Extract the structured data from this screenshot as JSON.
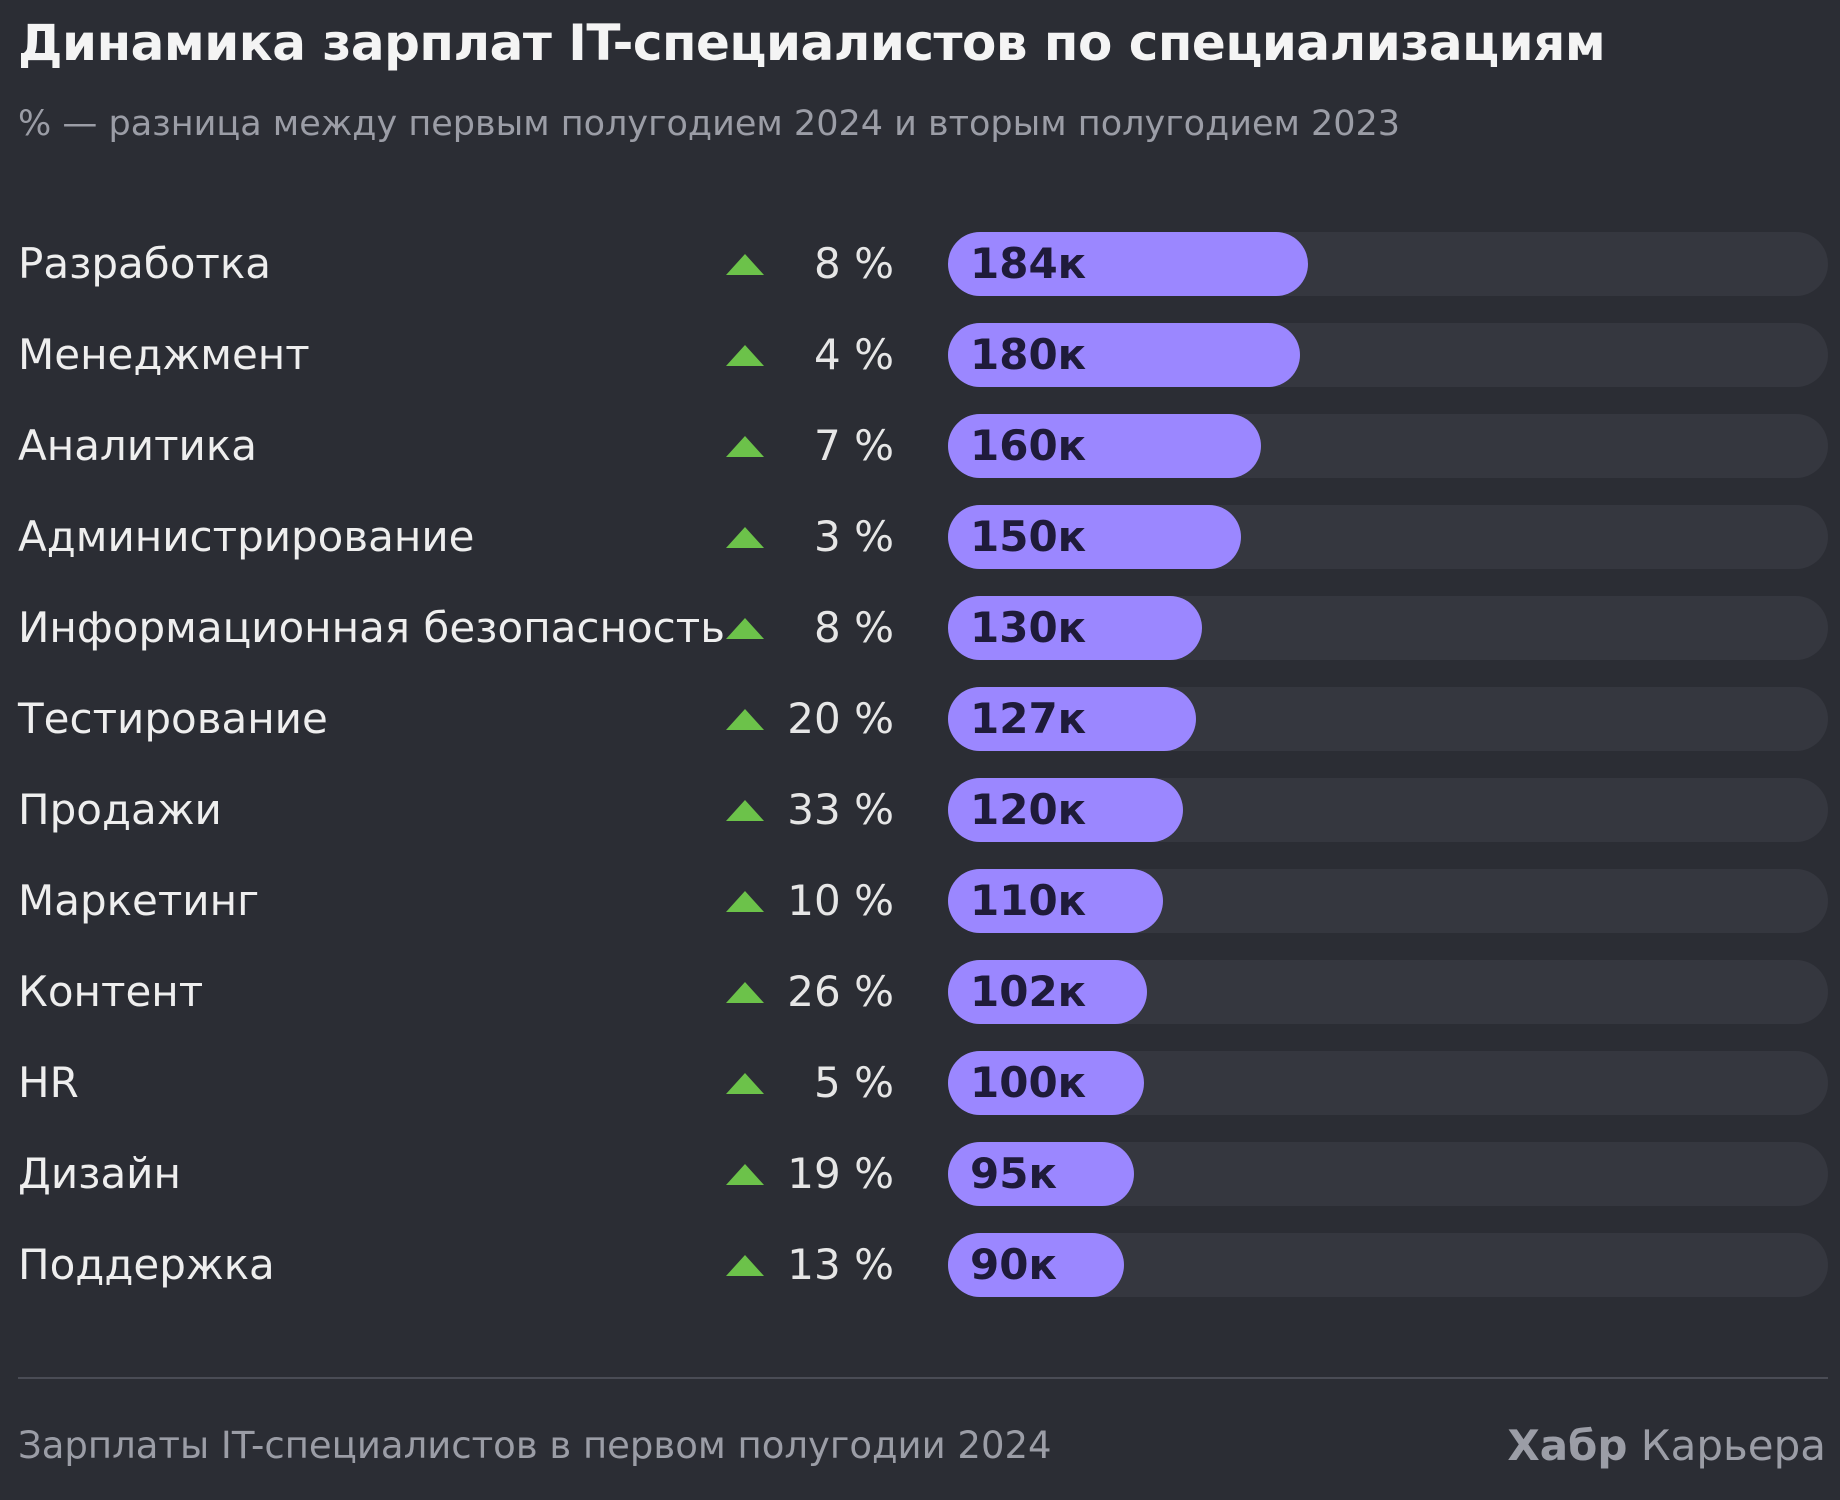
{
  "header": {
    "title": "Динамика зарплат IT-специалистов по специализациям",
    "subtitle": "% — разница между первым полугодием 2024 и вторым полугодием 2023"
  },
  "footer": {
    "note": "Зарплаты IT-специалистов в первом полугодии 2024",
    "brand_bold": "Хабр",
    "brand_regular": " Карьера"
  },
  "colors": {
    "background": "#2b2d34",
    "bar": "#9b87ff",
    "track": "#35373f",
    "trend_up": "#6cc24a"
  },
  "chart_data": {
    "type": "bar",
    "orientation": "horizontal",
    "title": "Динамика зарплат IT-специалистов по специализациям",
    "subtitle": "% — разница между первым полугодием 2024 и вторым полугодием 2023",
    "xlim": [
      0,
      450
    ],
    "categories": [
      "Разработка",
      "Менеджмент",
      "Аналитика",
      "Администрирование",
      "Информационная безопасность",
      "Тестирование",
      "Продажи",
      "Маркетинг",
      "Контент",
      "HR",
      "Дизайн",
      "Поддержка"
    ],
    "series": [
      {
        "values": [
          184,
          180,
          160,
          150,
          130,
          127,
          120,
          110,
          102,
          100,
          95,
          90
        ],
        "labels": [
          "184к",
          "180к",
          "160к",
          "150к",
          "130к",
          "127к",
          "120к",
          "110к",
          "102к",
          "100к",
          "95к",
          "90к"
        ]
      }
    ],
    "change_pct": [
      8,
      4,
      7,
      3,
      8,
      20,
      33,
      10,
      26,
      5,
      19,
      13
    ],
    "change_labels": [
      "8 %",
      "4 %",
      "7 %",
      "3 %",
      "8 %",
      "20 %",
      "33 %",
      "10 %",
      "26 %",
      "5 %",
      "19 %",
      "13 %"
    ],
    "change_direction": [
      "up",
      "up",
      "up",
      "up",
      "up",
      "up",
      "up",
      "up",
      "up",
      "up",
      "up",
      "up"
    ]
  }
}
